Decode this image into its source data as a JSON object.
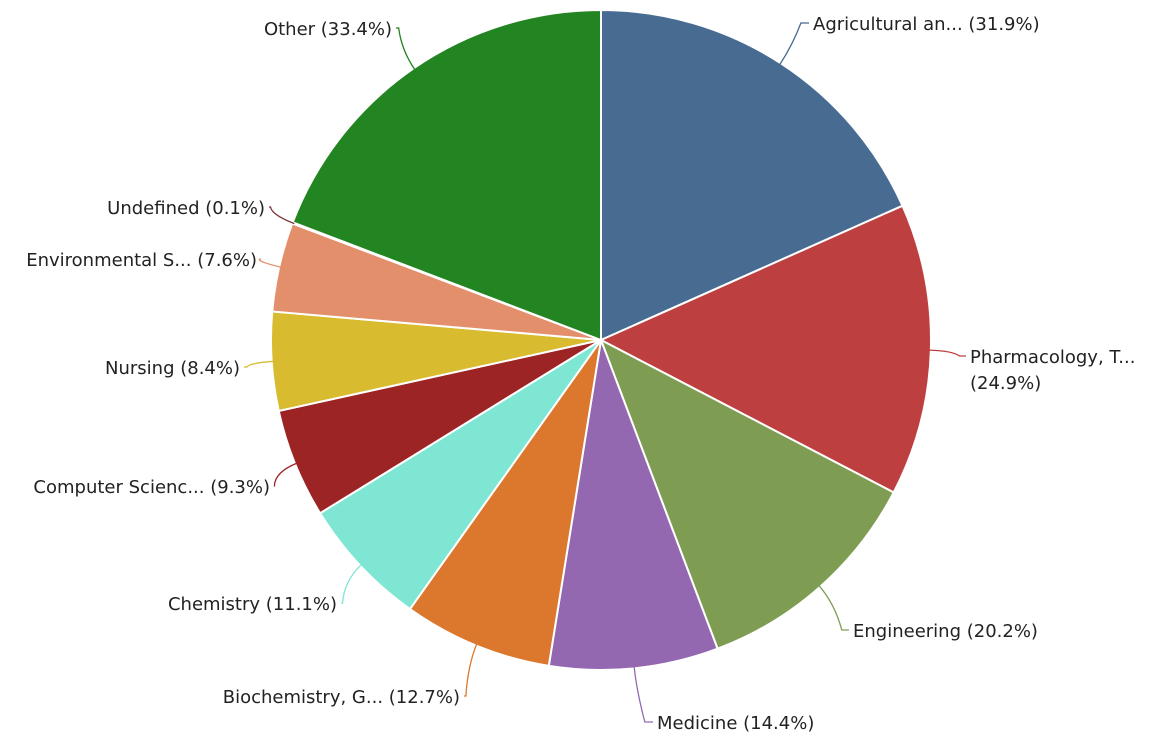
{
  "chart_data": {
    "type": "pie",
    "slices": [
      {
        "label": "Agricultural an...",
        "pct_text": "(31.9%)",
        "value": 31.9,
        "color": "#486b91"
      },
      {
        "label": "Pharmacology, T...",
        "pct_text": "(24.9%)",
        "value": 24.9,
        "color": "#be3f3f"
      },
      {
        "label": "Engineering",
        "pct_text": "(20.2%)",
        "value": 20.2,
        "color": "#7e9d53"
      },
      {
        "label": "Medicine",
        "pct_text": "(14.4%)",
        "value": 14.4,
        "color": "#9467b1"
      },
      {
        "label": "Biochemistry, G...",
        "pct_text": "(12.7%)",
        "value": 12.7,
        "color": "#db782d"
      },
      {
        "label": "Chemistry",
        "pct_text": "(11.1%)",
        "value": 11.1,
        "color": "#7fe6d4"
      },
      {
        "label": "Computer Scienc...",
        "pct_text": "(9.3%)",
        "value": 9.3,
        "color": "#9c2424"
      },
      {
        "label": "Nursing",
        "pct_text": "(8.4%)",
        "value": 8.4,
        "color": "#d9bb2f"
      },
      {
        "label": "Environmental S...",
        "pct_text": "(7.6%)",
        "value": 7.6,
        "color": "#e38f6b"
      },
      {
        "label": "Undefined",
        "pct_text": "(0.1%)",
        "value": 0.1,
        "color": "#7a3535"
      },
      {
        "label": "Other",
        "pct_text": "(33.4%)",
        "value": 33.4,
        "color": "#228522"
      }
    ],
    "start": "12 o'clock",
    "direction": "clockwise",
    "legend": "none"
  }
}
